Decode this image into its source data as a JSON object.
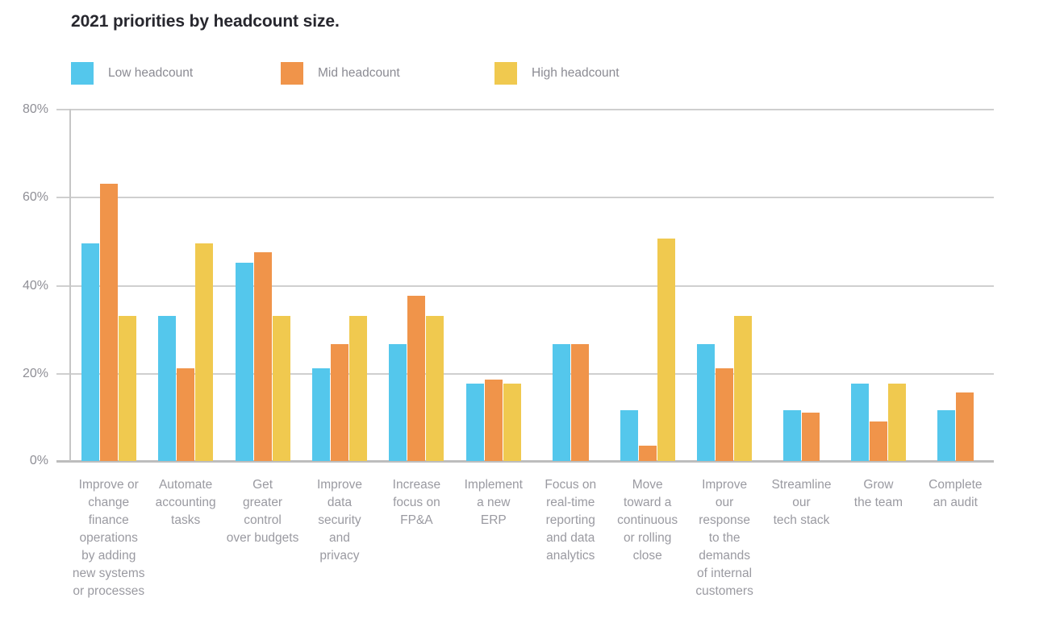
{
  "title": "2021 priorities by headcount size.",
  "chart_data": {
    "type": "bar",
    "title": "2021 priorities by headcount size.",
    "xlabel": "",
    "ylabel": "",
    "ylim": [
      0,
      80
    ],
    "y_ticks": [
      "80%",
      "60%",
      "40%",
      "20%",
      "0%"
    ],
    "grid": true,
    "legend_position": "top",
    "categories": [
      "Improve or\nchange\nfinance\noperations\nby adding\nnew systems\nor processes",
      "Automate\naccounting\ntasks",
      "Get\ngreater\ncontrol\nover budgets",
      "Improve\ndata\nsecurity\nand\nprivacy",
      "Increase\nfocus on\nFP&A",
      "Implement\na new\nERP",
      "Focus on\nreal-time\nreporting\nand data\nanalytics",
      "Move\ntoward a\ncontinuous\nor rolling\nclose",
      "Improve\nour\nresponse\nto the\ndemands\nof internal\ncustomers",
      "Streamline\nour\ntech stack",
      "Grow\nthe team",
      "Complete\nan audit"
    ],
    "series": [
      {
        "name": "Low headcount",
        "color": "#54C7EC",
        "values": [
          49.5,
          33,
          45,
          21,
          26.5,
          17.5,
          26.5,
          11.5,
          26.5,
          11.5,
          17.5,
          11.5
        ]
      },
      {
        "name": "Mid headcount",
        "color": "#F0944A",
        "values": [
          63,
          21,
          47.5,
          26.5,
          37.5,
          18.5,
          26.5,
          3.5,
          21,
          11,
          9,
          15.5
        ]
      },
      {
        "name": "High headcount",
        "color": "#F0C94F",
        "values": [
          33,
          49.5,
          33,
          33,
          33,
          17.5,
          0,
          50.5,
          33,
          0,
          17.5,
          0
        ]
      }
    ]
  }
}
